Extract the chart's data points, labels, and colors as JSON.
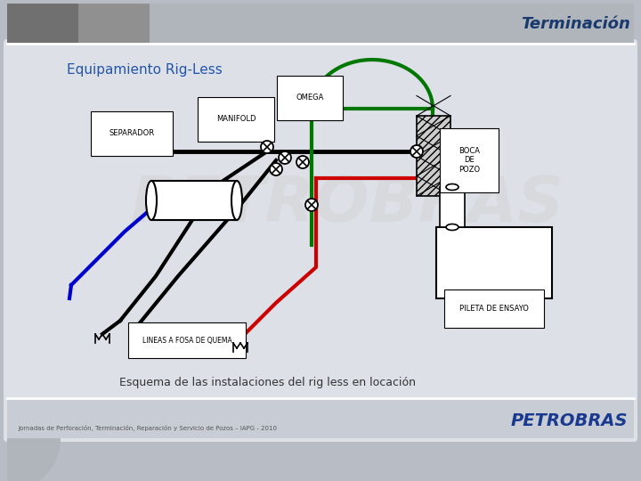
{
  "title": "Terminación",
  "subtitle": "Equipamiento Rig-Less",
  "caption": "Esquema de las instalaciones del rig less en locación",
  "footer": "Jornadas de Perforación, Terminación, Reparación y Servicio de Pozos – IAPG - 2010",
  "petrobras_text": "PETROBRAS",
  "watermark": "PETROBRAS",
  "title_color": "#1a3a6e",
  "subtitle_color": "#2255aa",
  "labels": {
    "omega": "OMEGA",
    "manifold": "MANIFOLD",
    "separador": "SEPARADOR",
    "boca_de_pozo": "BOCA\nDE\nPOZO",
    "pileta_de_ensayo": "PILETA DE ENSAYO",
    "lineas": "LINEAS A FOSA DE QUEMA"
  },
  "line_colors": {
    "black": "#000000",
    "green": "#007700",
    "red": "#cc0000",
    "blue": "#0000cc"
  }
}
